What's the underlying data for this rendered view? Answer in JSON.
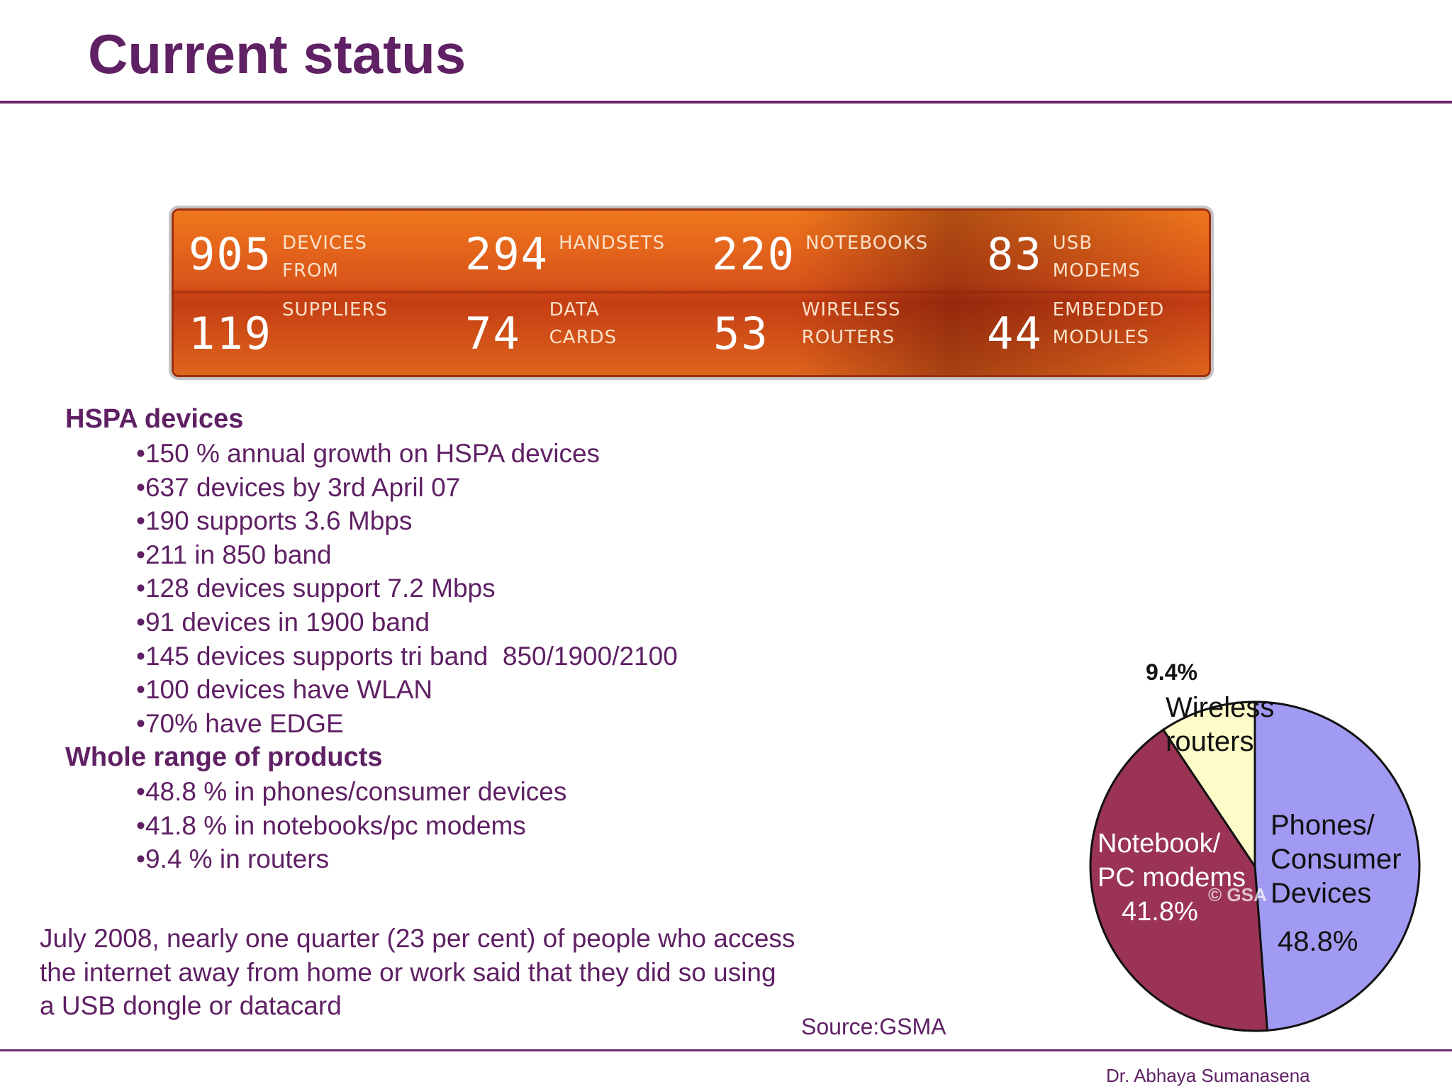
{
  "title": "Current status",
  "banner": {
    "stats": [
      {
        "number": "905",
        "label": "DEVICES\nFROM"
      },
      {
        "number": "294",
        "label": "HANDSETS"
      },
      {
        "number": "220",
        "label": "NOTEBOOKS"
      },
      {
        "number": "83",
        "label": "USB\nMODEMS"
      },
      {
        "number": "119",
        "label": "SUPPLIERS"
      },
      {
        "number": "74",
        "label": "DATA\nCARDS"
      },
      {
        "number": "53",
        "label": "WIRELESS\nROUTERS"
      },
      {
        "number": "44",
        "label": "EMBEDDED\nMODULES"
      }
    ]
  },
  "sections": [
    {
      "heading": "HSPA devices",
      "bullets": [
        "150 % annual growth on HSPA devices",
        "637 devices by 3rd April 07",
        "190 supports 3.6 Mbps",
        "211 in 850 band",
        "128 devices support 7.2 Mbps",
        "91 devices in 1900 band",
        "145 devices supports tri band  850/1900/2100",
        "100 devices have WLAN",
        "70% have EDGE"
      ]
    },
    {
      "heading": "Whole range of products",
      "bullets": [
        "48.8 % in phones/consumer devices",
        "41.8 % in notebooks/pc modems",
        "9.4 % in routers"
      ]
    }
  ],
  "note": "July 2008, nearly one quarter (23 per cent) of people who access\n the internet away from home or work said that they did so using\na USB dongle or datacard",
  "source": "Source:GSMA",
  "author": "Dr. Abhaya Sumanasena",
  "chart_data": {
    "type": "pie",
    "title": "",
    "slices": [
      {
        "name": "Phones/\nConsumer\nDevices",
        "value": 48.8,
        "label": "48.8%",
        "color": "#a19af2"
      },
      {
        "name": "Notebook/\nPC modems",
        "value": 41.8,
        "label": "41.8%",
        "color": "#9b3454"
      },
      {
        "name": "Wireless\nrouters",
        "value": 9.4,
        "label": "9.4%",
        "color": "#fdfbc8"
      }
    ],
    "watermark": "© GSA"
  },
  "colors": {
    "accent": "#5f2064",
    "banner_orange": "#e0661c"
  }
}
